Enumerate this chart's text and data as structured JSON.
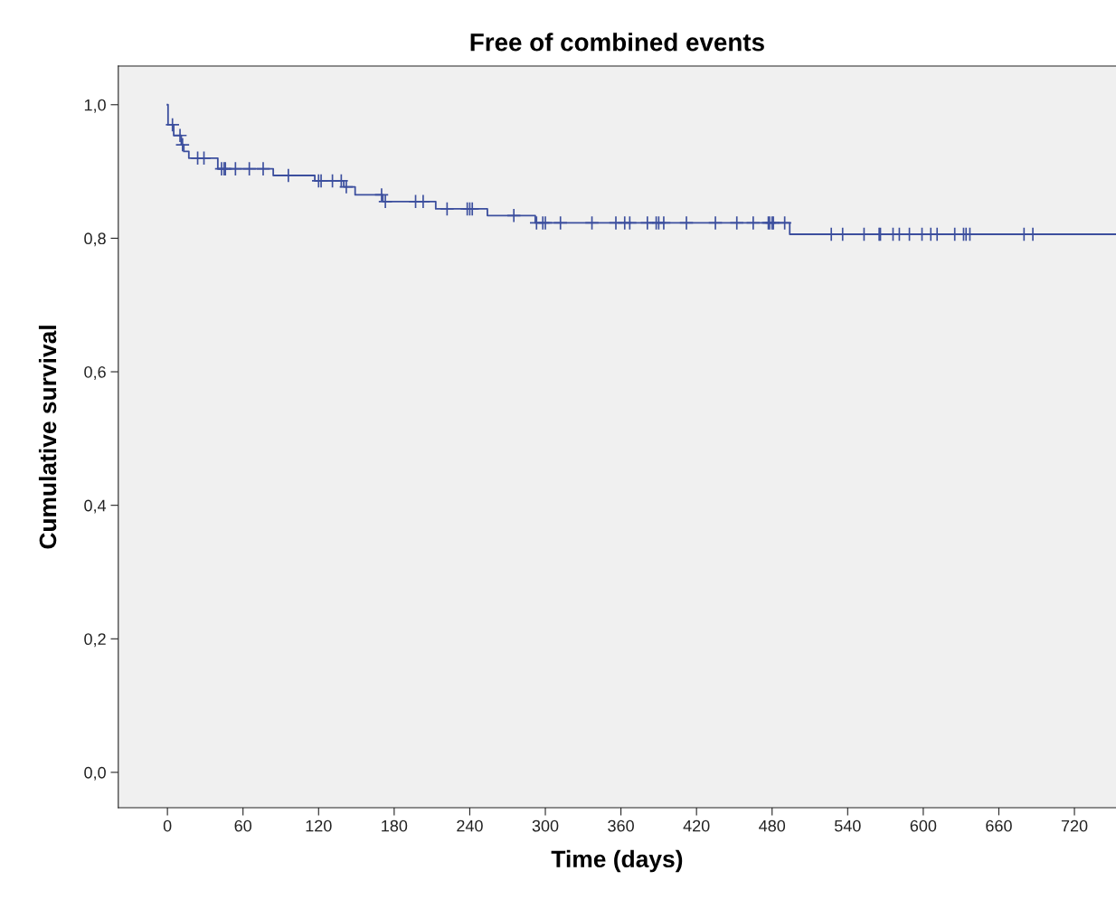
{
  "chart_data": {
    "type": "step",
    "title": "Free of combined events",
    "xlabel": "Time (days)",
    "ylabel": "Cumulative survival",
    "xlim": [
      -39,
      753
    ],
    "xticks": [
      0,
      60,
      120,
      180,
      240,
      300,
      360,
      420,
      480,
      540,
      600,
      660,
      720
    ],
    "ylim": [
      -0.053,
      1.058
    ],
    "yticks": [
      {
        "value": 0.0,
        "label": "0,0"
      },
      {
        "value": 0.2,
        "label": "0,2"
      },
      {
        "value": 0.4,
        "label": "0,4"
      },
      {
        "value": 0.6,
        "label": "0,6"
      },
      {
        "value": 0.8,
        "label": "0,8"
      },
      {
        "value": 1.0,
        "label": "1,0"
      }
    ],
    "grid": false,
    "series": [
      {
        "color": "#3c4f9e",
        "marker": "none",
        "x": [
          0,
          0.5,
          5,
          11,
          13,
          17,
          40,
          84,
          117,
          140,
          149,
          171,
          213,
          254,
          292,
          494,
          753
        ],
        "values": [
          1.0,
          0.97,
          0.954,
          0.94,
          0.93,
          0.92,
          0.904,
          0.894,
          0.886,
          0.877,
          0.865,
          0.855,
          0.844,
          0.834,
          0.823,
          0.806,
          0.806
        ]
      },
      {
        "type": "scatter",
        "color": "#3c4f9e",
        "marker": "cross",
        "x": [
          4,
          10,
          12,
          24,
          29,
          43,
          45,
          46,
          54,
          65,
          76,
          96,
          120,
          122,
          131,
          138,
          142,
          170,
          173,
          197,
          203,
          222,
          238,
          240,
          242,
          275,
          293,
          298,
          300,
          312,
          337,
          356,
          363,
          367,
          381,
          388,
          390,
          394,
          412,
          435,
          452,
          465,
          477,
          478,
          480,
          481,
          490,
          527,
          536,
          553,
          565,
          566,
          576,
          581,
          589,
          599,
          606,
          611,
          625,
          632,
          634,
          637,
          680,
          687
        ],
        "values": [
          0.97,
          0.954,
          0.94,
          0.92,
          0.92,
          0.904,
          0.904,
          0.904,
          0.904,
          0.904,
          0.904,
          0.894,
          0.886,
          0.886,
          0.886,
          0.886,
          0.877,
          0.865,
          0.855,
          0.855,
          0.855,
          0.844,
          0.844,
          0.844,
          0.844,
          0.834,
          0.823,
          0.823,
          0.823,
          0.823,
          0.823,
          0.823,
          0.823,
          0.823,
          0.823,
          0.823,
          0.823,
          0.823,
          0.823,
          0.823,
          0.823,
          0.823,
          0.823,
          0.823,
          0.823,
          0.823,
          0.823,
          0.806,
          0.806,
          0.806,
          0.806,
          0.806,
          0.806,
          0.806,
          0.806,
          0.806,
          0.806,
          0.806,
          0.806,
          0.806,
          0.806,
          0.806,
          0.806,
          0.806
        ]
      }
    ]
  }
}
